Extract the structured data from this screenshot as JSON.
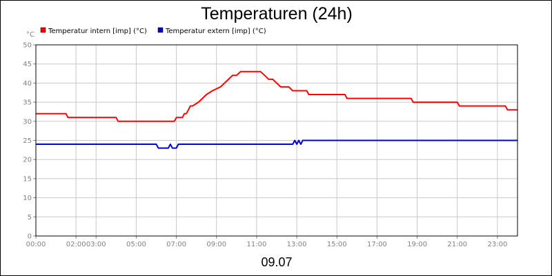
{
  "chart_data": {
    "type": "line",
    "title": "Temperaturen (24h)",
    "ylabel": "°C",
    "xlabel": "09.07",
    "ylim": [
      0,
      50
    ],
    "y_ticks": [
      0,
      5,
      10,
      15,
      20,
      25,
      30,
      35,
      40,
      45,
      50
    ],
    "x_tick_labels": [
      "00:00",
      "02:00",
      "03:00",
      "05:00",
      "07:00",
      "09:00",
      "11:00",
      "13:00",
      "15:00",
      "17:00",
      "19:00",
      "21:00",
      "23:00"
    ],
    "x_tick_hours": [
      0,
      2,
      3,
      5,
      7,
      9,
      11,
      13,
      15,
      17,
      19,
      21,
      23
    ],
    "x_range_hours": [
      0,
      24
    ],
    "grid": true,
    "legend_placement": "top-left",
    "series": [
      {
        "name": "Temperatur intern [imp] (°C)",
        "color": "#ff0000",
        "x": [
          0,
          1.5,
          1.6,
          4.0,
          4.1,
          6.9,
          7.0,
          7.3,
          7.4,
          7.5,
          7.6,
          7.7,
          7.8,
          8.1,
          8.3,
          8.5,
          8.8,
          9.2,
          9.4,
          9.6,
          9.8,
          10.0,
          10.2,
          11.2,
          11.4,
          11.6,
          11.8,
          12.0,
          12.2,
          12.6,
          12.8,
          13.5,
          13.6,
          15.4,
          15.5,
          18.7,
          18.8,
          21.0,
          21.1,
          23.4,
          23.5,
          24.0
        ],
        "y": [
          32,
          32,
          31,
          31,
          30,
          30,
          31,
          31,
          32,
          32,
          33,
          34,
          34,
          35,
          36,
          37,
          38,
          39,
          40,
          41,
          42,
          42,
          43,
          43,
          42,
          41,
          41,
          40,
          39,
          39,
          38,
          38,
          37,
          37,
          36,
          36,
          35,
          35,
          34,
          34,
          33,
          33
        ]
      },
      {
        "name": "Temperatur extern [imp] (°C)",
        "color": "#0000cc",
        "x": [
          0,
          6.0,
          6.1,
          6.6,
          6.7,
          6.8,
          7.0,
          7.1,
          12.8,
          12.9,
          13.0,
          13.1,
          13.2,
          13.3,
          24.0
        ],
        "y": [
          24,
          24,
          23,
          23,
          24,
          23,
          23,
          24,
          24,
          25,
          24,
          25,
          24,
          25,
          25
        ]
      }
    ]
  }
}
